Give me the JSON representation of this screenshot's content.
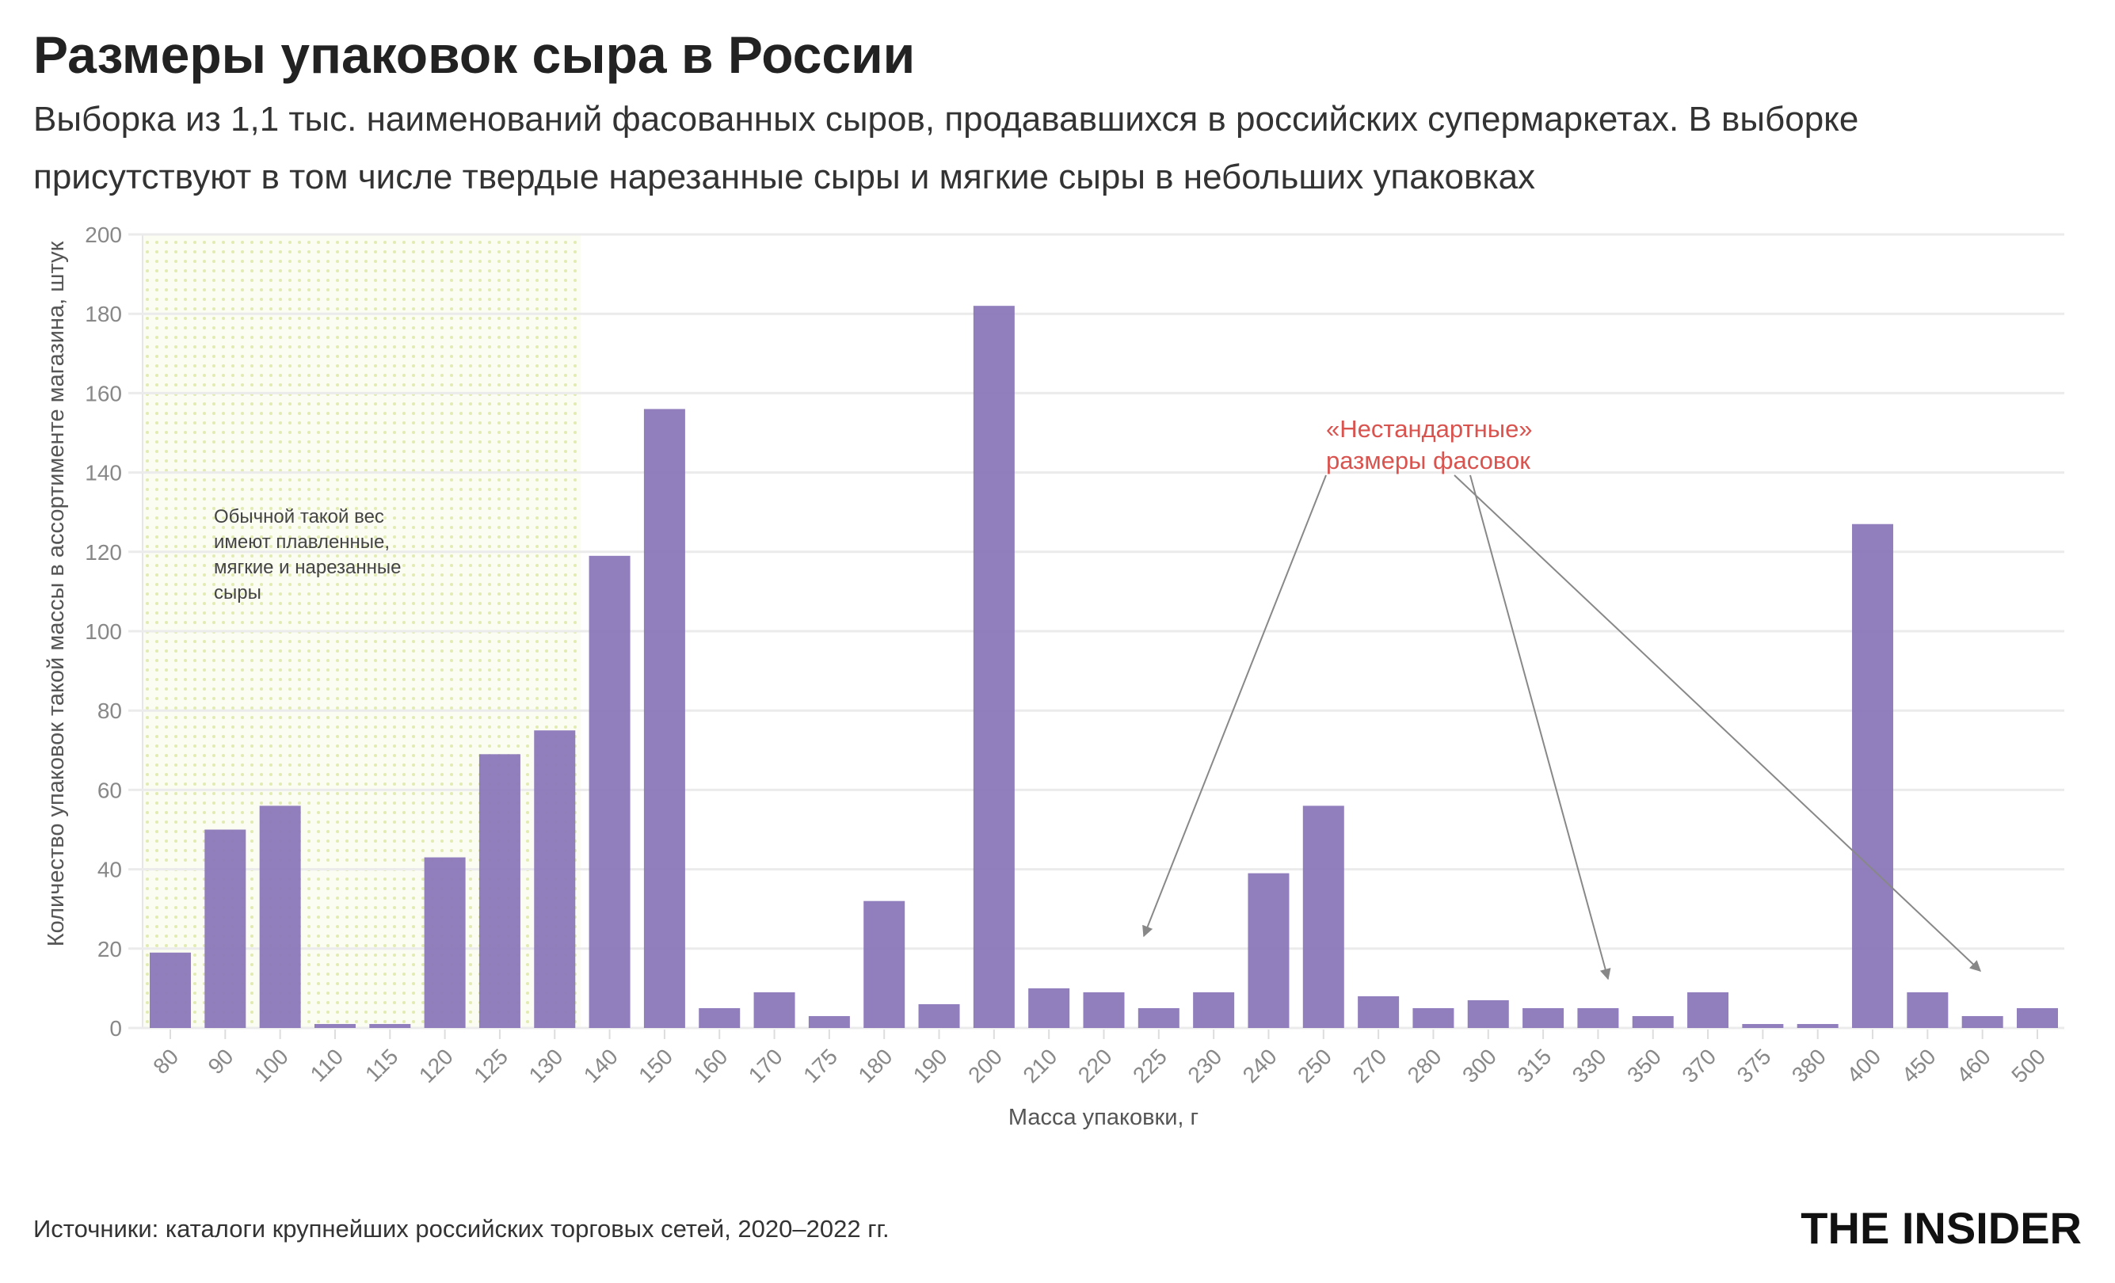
{
  "chart_data": {
    "type": "bar",
    "title": "Размеры упаковок сыра в России",
    "subtitle": [
      "Выборка из 1,1 тыс. наименований фасованных сыров, продававшихся в российских супермаркетах. В выборке",
      "присутствуют в том числе твердые нарезанные сыры и мягкие сыры в небольших упаковках"
    ],
    "xlabel": "Масса упаковки, г",
    "ylabel": "Количество упаковок такой массы в ассортименте магазина, штук",
    "ylim": [
      0,
      200
    ],
    "yticks": [
      0,
      20,
      40,
      60,
      80,
      100,
      120,
      140,
      160,
      180,
      200
    ],
    "grid": true,
    "categories": [
      "80",
      "90",
      "100",
      "110",
      "115",
      "120",
      "125",
      "130",
      "140",
      "150",
      "160",
      "170",
      "175",
      "180",
      "190",
      "200",
      "210",
      "220",
      "225",
      "230",
      "240",
      "250",
      "270",
      "280",
      "300",
      "315",
      "330",
      "350",
      "370",
      "375",
      "380",
      "400",
      "450",
      "460",
      "500"
    ],
    "values": [
      19,
      50,
      56,
      1,
      1,
      43,
      69,
      75,
      119,
      156,
      5,
      9,
      3,
      32,
      6,
      182,
      10,
      9,
      5,
      9,
      39,
      56,
      8,
      5,
      7,
      5,
      5,
      3,
      9,
      1,
      1,
      127,
      9,
      3,
      5
    ],
    "highlight_range": [
      "80",
      "130"
    ],
    "annotations": {
      "shaded_note": [
        "Обычной такой вес",
        "имеют плавленные,",
        "мягкие и нарезанные",
        "сыры"
      ],
      "nonstandard": [
        "«Нестандартные»",
        "размеры фасовок"
      ],
      "nonstandard_targets": [
        "225",
        "330",
        "460"
      ]
    },
    "colors": {
      "bar": "#8b78b9",
      "highlight": "#e8eec0",
      "annotation": "#d9534f",
      "grid": "#ebebeb"
    }
  },
  "footer": {
    "source": "Источники: каталоги крупнейших российских торговых сетей, 2020–2022 гг.",
    "logo": "THE INSIDER"
  }
}
